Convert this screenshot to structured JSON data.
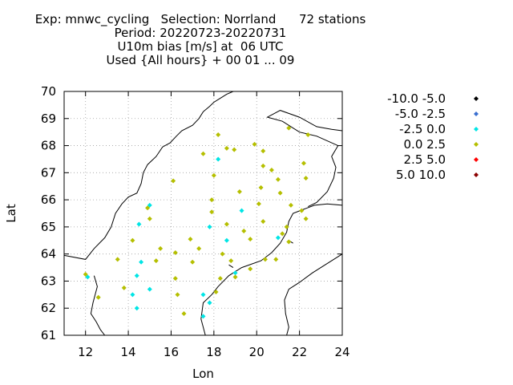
{
  "chart_data": {
    "type": "scatter",
    "title_lines": [
      "Exp: mnwc_cycling   Selection: Norrland      72 stations",
      "Period: 20220723-20220731",
      "U10m bias [m/s] at  06 UTC",
      "Used {All hours} + 00 01 ... 09"
    ],
    "xlabel": "Lon",
    "ylabel": "Lat",
    "xlim": [
      11,
      24
    ],
    "ylim": [
      61,
      70
    ],
    "xticks": [
      12,
      14,
      16,
      18,
      20,
      22,
      24
    ],
    "yticks": [
      61,
      62,
      63,
      64,
      65,
      66,
      67,
      68,
      69,
      70
    ],
    "grid": true,
    "legend_position": "right",
    "series": [
      {
        "name": "-10.0 -5.0",
        "color": "#000000",
        "points": []
      },
      {
        "name": "-5.0 -2.5",
        "color": "#3a6fd0",
        "points": []
      },
      {
        "name": "-2.5 0.0",
        "color": "#00e5e5",
        "points": [
          [
            12.1,
            63.15
          ],
          [
            14.5,
            65.1
          ],
          [
            15.0,
            65.8
          ],
          [
            14.6,
            63.7
          ],
          [
            14.4,
            63.2
          ],
          [
            14.2,
            62.5
          ],
          [
            14.4,
            62.0
          ],
          [
            15.0,
            62.7
          ],
          [
            17.8,
            65.0
          ],
          [
            18.2,
            67.5
          ],
          [
            18.6,
            64.5
          ],
          [
            19.3,
            65.6
          ],
          [
            17.5,
            62.5
          ],
          [
            17.8,
            62.2
          ],
          [
            17.5,
            61.7
          ],
          [
            21.0,
            64.6
          ],
          [
            19.0,
            63.3
          ]
        ]
      },
      {
        "name": "0.0 2.5",
        "color": "#b5bf00",
        "points": [
          [
            12.0,
            63.25
          ],
          [
            12.6,
            62.4
          ],
          [
            13.5,
            63.8
          ],
          [
            13.8,
            62.75
          ],
          [
            14.2,
            64.5
          ],
          [
            14.9,
            65.7
          ],
          [
            15.0,
            65.3
          ],
          [
            15.3,
            63.75
          ],
          [
            15.5,
            64.2
          ],
          [
            16.1,
            66.7
          ],
          [
            16.2,
            63.1
          ],
          [
            16.2,
            64.05
          ],
          [
            16.3,
            62.5
          ],
          [
            16.6,
            61.8
          ],
          [
            16.9,
            64.55
          ],
          [
            17.0,
            63.7
          ],
          [
            17.3,
            64.2
          ],
          [
            17.5,
            67.7
          ],
          [
            17.9,
            66.0
          ],
          [
            17.9,
            65.55
          ],
          [
            18.0,
            66.9
          ],
          [
            18.1,
            62.6
          ],
          [
            18.2,
            68.4
          ],
          [
            18.3,
            63.1
          ],
          [
            18.4,
            64.0
          ],
          [
            18.6,
            67.9
          ],
          [
            18.6,
            65.1
          ],
          [
            18.8,
            63.75
          ],
          [
            18.95,
            67.85
          ],
          [
            19.0,
            63.15
          ],
          [
            19.2,
            66.3
          ],
          [
            19.4,
            64.85
          ],
          [
            19.7,
            64.55
          ],
          [
            19.7,
            63.45
          ],
          [
            19.9,
            68.05
          ],
          [
            20.1,
            65.85
          ],
          [
            20.2,
            66.45
          ],
          [
            20.3,
            67.25
          ],
          [
            20.3,
            67.8
          ],
          [
            20.3,
            65.2
          ],
          [
            20.4,
            63.8
          ],
          [
            20.7,
            67.1
          ],
          [
            20.9,
            63.8
          ],
          [
            21.0,
            66.75
          ],
          [
            21.1,
            66.25
          ],
          [
            21.2,
            64.75
          ],
          [
            21.4,
            65.0
          ],
          [
            21.5,
            68.65
          ],
          [
            21.5,
            64.45
          ],
          [
            21.6,
            65.8
          ],
          [
            22.1,
            65.6
          ],
          [
            22.2,
            67.35
          ],
          [
            22.3,
            65.3
          ],
          [
            22.3,
            66.8
          ],
          [
            22.4,
            68.4
          ]
        ]
      },
      {
        "name": "2.5 5.0",
        "color": "#ff0000",
        "points": []
      },
      {
        "name": "5.0 10.0",
        "color": "#8b0000",
        "points": []
      }
    ]
  }
}
